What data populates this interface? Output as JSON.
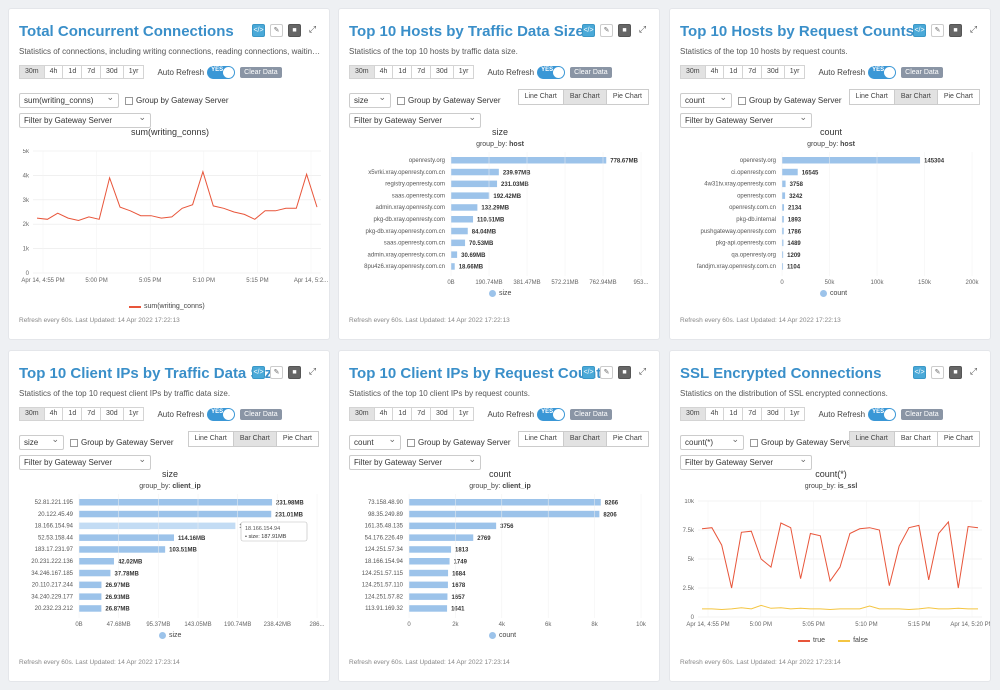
{
  "time_ranges": [
    "30m",
    "4h",
    "1d",
    "7d",
    "30d",
    "1yr"
  ],
  "auto_refresh_label": "Auto Refresh",
  "toggle_label": "YES",
  "clear_data_label": "Clear Data",
  "filter_placeholder": "Filter by Gateway Server",
  "group_label": "Group by Gateway Server",
  "chart_types": [
    "Line Chart",
    "Bar Chart",
    "Pie Chart"
  ],
  "colors": {
    "title": "#3a8fc9",
    "bar": "#9cc3ea",
    "line_true": "#e8553a",
    "line_false": "#f4c542"
  },
  "panels": [
    {
      "title": "Total Concurrent Connections",
      "desc": "Statistics of connections, including writing connections, reading connections, waiting c...",
      "metric": "sum(writing_conns)",
      "chart_title": "sum(writing_conns)",
      "footer": "Refresh every 60s. Last Updated: 14 Apr 2022 17:22:13",
      "legend": "sum(writing_conns)"
    },
    {
      "title": "Top 10 Hosts by Traffic Data Size",
      "desc": "Statistics of the top 10 hosts by traffic data size.",
      "metric": "size",
      "chart_title": "size",
      "group_by_label": "group_by:",
      "group_by_value": "host",
      "footer": "Refresh every 60s. Last Updated: 14 Apr 2022 17:22:13",
      "legend": "size"
    },
    {
      "title": "Top 10 Hosts by Request Counts",
      "desc": "Statistics of the top 10 hosts by request counts.",
      "metric": "count",
      "chart_title": "count",
      "group_by_label": "group_by:",
      "group_by_value": "host",
      "footer": "Refresh every 60s. Last Updated: 14 Apr 2022 17:22:13",
      "legend": "count"
    },
    {
      "title": "Top 10 Client IPs by Traffic Data Size",
      "desc": "Statistics of the top 10 request client IPs by traffic data size.",
      "metric": "size",
      "chart_title": "size",
      "group_by_label": "group_by:",
      "group_by_value": "client_ip",
      "footer": "Refresh every 60s. Last Updated: 14 Apr 2022 17:23:14",
      "legend": "size",
      "tooltip_title": "18.166.154.94",
      "tooltip_value": "size: 187.91MB"
    },
    {
      "title": "Top 10 Client IPs by Request Counts",
      "desc": "Statistics of the top 10 client IPs by request counts.",
      "metric": "count",
      "chart_title": "count",
      "group_by_label": "group_by:",
      "group_by_value": "client_ip",
      "footer": "Refresh every 60s. Last Updated: 14 Apr 2022 17:23:14",
      "legend": "count"
    },
    {
      "title": "SSL Encrypted Connections",
      "desc": "Statistics on the distribution of SSL encrypted connections.",
      "metric": "count(*)",
      "chart_title": "count(*)",
      "group_by_label": "group_by:",
      "group_by_value": "is_ssl",
      "footer": "Refresh every 60s. Last Updated: 14 Apr 2022 17:23:14",
      "legend_true": "true",
      "legend_false": "false"
    }
  ],
  "chart_data": [
    {
      "type": "line",
      "title": "sum(writing_conns)",
      "ylim": [
        0,
        5000
      ],
      "yticks": [
        "0",
        "1k",
        "2k",
        "3k",
        "4k",
        "5k"
      ],
      "xticks": [
        "Apr 14, 4:55 PM",
        "5:00 PM",
        "5:05 PM",
        "5:10 PM",
        "5:15 PM",
        "Apr 14, 5:2..."
      ],
      "series": [
        {
          "name": "sum(writing_conns)",
          "values": [
            2250,
            2200,
            2450,
            2250,
            2150,
            2300,
            2200,
            3900,
            2700,
            2550,
            2350,
            2350,
            2250,
            2300,
            2650,
            2800,
            4150,
            2750,
            2650,
            2500,
            2400,
            2200,
            2550,
            2550,
            2650,
            2650,
            4050,
            2700
          ]
        }
      ]
    },
    {
      "type": "bar",
      "title": "size",
      "categories": [
        "openresty.org",
        "x5vrki.xray.openresty.com.cn",
        "registry.openresty.com",
        "saas.openresty.com",
        "admin.xray.openresty.com",
        "pkg-db.xray.openresty.com",
        "pkg-db.xray.openresty.com.cn",
        "saas.openresty.com.cn",
        "admin.xray.openresty.com.cn",
        "8pu4z6.xray.openresty.com.cn"
      ],
      "values": [
        778.67,
        239.97,
        231.03,
        192.42,
        132.29,
        110.51,
        84.04,
        70.53,
        30.69,
        18.66
      ],
      "labels": [
        "778.67MB",
        "239.97MB",
        "231.03MB",
        "192.42MB",
        "132.29MB",
        "110.51MB",
        "84.04MB",
        "70.53MB",
        "30.69MB",
        "18.66MB"
      ],
      "xlim": [
        0,
        953
      ],
      "xticks": [
        "0B",
        "190.74MB",
        "381.47MB",
        "572.21MB",
        "762.94MB",
        "953..."
      ]
    },
    {
      "type": "bar",
      "title": "count",
      "categories": [
        "openresty.org",
        "ci.openresty.com",
        "4w31tv.xray.openresty.com",
        "openresty.com",
        "openresty.com.cn",
        "pkg-db.internal",
        "pushgateway.openresty.com",
        "pkg-api.openresty.com",
        "qa.openresty.org",
        "fandjm.xray.openresty.com.cn"
      ],
      "values": [
        145304,
        16545,
        3758,
        3242,
        2134,
        1893,
        1786,
        1489,
        1209,
        1104
      ],
      "labels": [
        "145304",
        "16545",
        "3758",
        "3242",
        "2134",
        "1893",
        "1786",
        "1489",
        "1209",
        "1104"
      ],
      "xlim": [
        0,
        200000
      ],
      "xticks": [
        "0",
        "50k",
        "100k",
        "150k",
        "200k"
      ]
    },
    {
      "type": "bar",
      "title": "size",
      "categories": [
        "52.81.221.195",
        "20.122.45.49",
        "18.166.154.94",
        "52.53.158.44",
        "183.17.231.97",
        "20.231.222.136",
        "34.246.167.185",
        "20.110.217.244",
        "34.240.229.177",
        "20.232.23.212"
      ],
      "values": [
        231.98,
        231.01,
        187.91,
        114.16,
        103.51,
        42.02,
        37.78,
        26.97,
        26.93,
        26.87
      ],
      "labels": [
        "231.98MB",
        "231.01MB",
        "187.91MB",
        "114.16MB",
        "103.51MB",
        "42.02MB",
        "37.78MB",
        "26.97MB",
        "26.93MB",
        "26.87MB"
      ],
      "xlim": [
        0,
        286
      ],
      "xticks": [
        "0B",
        "47.68MB",
        "95.37MB",
        "143.05MB",
        "190.74MB",
        "238.42MB",
        "286..."
      ]
    },
    {
      "type": "bar",
      "title": "count",
      "categories": [
        "73.158.48.90",
        "98.35.249.89",
        "161.35.48.135",
        "54.176.226.49",
        "124.251.57.34",
        "18.166.154.94",
        "124.251.57.115",
        "124.251.57.110",
        "124.251.57.82",
        "113.91.169.32"
      ],
      "values": [
        8266,
        8206,
        3756,
        2769,
        1813,
        1749,
        1684,
        1678,
        1657,
        1641
      ],
      "labels": [
        "8266",
        "8206",
        "3756",
        "2769",
        "1813",
        "1749",
        "1684",
        "1678",
        "1657",
        "1641"
      ],
      "xlim": [
        0,
        10000
      ],
      "xticks": [
        "0",
        "2k",
        "4k",
        "6k",
        "8k",
        "10k"
      ]
    },
    {
      "type": "line",
      "title": "count(*)",
      "ylim": [
        0,
        10000
      ],
      "yticks": [
        "0",
        "2.5k",
        "5k",
        "7.5k",
        "10k"
      ],
      "xticks": [
        "Apr 14, 4:55 PM",
        "5:00 PM",
        "5:05 PM",
        "5:10 PM",
        "5:15 PM",
        "Apr 14, 5:20 PM"
      ],
      "series": [
        {
          "name": "true",
          "values": [
            7600,
            7700,
            6200,
            2500,
            7300,
            7400,
            5000,
            4300,
            8100,
            7700,
            3300,
            7200,
            7000,
            3100,
            4300,
            7200,
            7600,
            7700,
            7500,
            2700,
            6100,
            7700,
            7900,
            3200,
            7200,
            8200,
            2500,
            7800,
            7700
          ]
        },
        {
          "name": "false",
          "values": [
            700,
            700,
            650,
            700,
            800,
            700,
            1000,
            750,
            800,
            700,
            750,
            700,
            700,
            650,
            700,
            700,
            700,
            950,
            700,
            700,
            700,
            650,
            700,
            800,
            700,
            700,
            750,
            700,
            700
          ]
        }
      ]
    }
  ]
}
